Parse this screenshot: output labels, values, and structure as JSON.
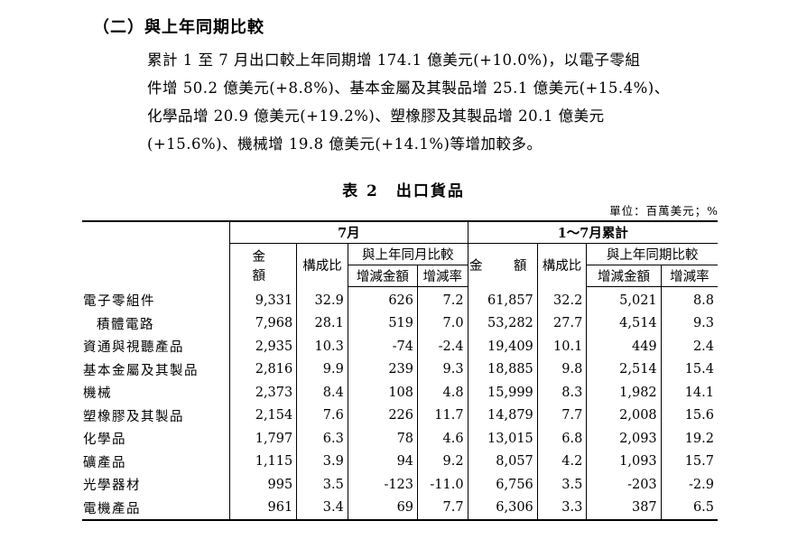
{
  "heading": "（二）與上年同期比較",
  "paragraph_lines": [
    "累計 1 至 7 月出口較上年同期增 174.1 億美元(+10.0%)，以電子零組",
    "件增 50.2 億美元(+8.8%)、基本金屬及其製品增 25.1 億美元(+15.4%)、",
    "化學品增  20.9  億美元(+19.2%)、塑橡膠及其製品增  20.1  億美元",
    "(+15.6%)、機械增 19.8 億美元(+14.1%)等增加較多。"
  ],
  "table": {
    "title": "表 2　出口貨品",
    "unit": "單位：百萬美元；%",
    "group_month": "7月",
    "group_cumulative": "1～7月累計",
    "col_amount": "金　額",
    "col_share": "構成比",
    "col_yoy_month": "與上年同月比較",
    "col_yoy_period": "與上年同期比較",
    "col_change": "增減金額",
    "col_rate": "增減率",
    "rows": [
      {
        "name": "電子零組件",
        "indent": false,
        "m_amt": "9,331",
        "m_share": "32.9",
        "m_chg": "626",
        "m_rate": "7.2",
        "c_amt": "61,857",
        "c_share": "32.2",
        "c_chg": "5,021",
        "c_rate": "8.8"
      },
      {
        "name": "積體電路",
        "indent": true,
        "m_amt": "7,968",
        "m_share": "28.1",
        "m_chg": "519",
        "m_rate": "7.0",
        "c_amt": "53,282",
        "c_share": "27.7",
        "c_chg": "4,514",
        "c_rate": "9.3"
      },
      {
        "name": "資通與視聽產品",
        "indent": false,
        "m_amt": "2,935",
        "m_share": "10.3",
        "m_chg": "-74",
        "m_rate": "-2.4",
        "c_amt": "19,409",
        "c_share": "10.1",
        "c_chg": "449",
        "c_rate": "2.4"
      },
      {
        "name": "基本金屬及其製品",
        "indent": false,
        "m_amt": "2,816",
        "m_share": "9.9",
        "m_chg": "239",
        "m_rate": "9.3",
        "c_amt": "18,885",
        "c_share": "9.8",
        "c_chg": "2,514",
        "c_rate": "15.4"
      },
      {
        "name": "機械",
        "indent": false,
        "m_amt": "2,373",
        "m_share": "8.4",
        "m_chg": "108",
        "m_rate": "4.8",
        "c_amt": "15,999",
        "c_share": "8.3",
        "c_chg": "1,982",
        "c_rate": "14.1"
      },
      {
        "name": "塑橡膠及其製品",
        "indent": false,
        "m_amt": "2,154",
        "m_share": "7.6",
        "m_chg": "226",
        "m_rate": "11.7",
        "c_amt": "14,879",
        "c_share": "7.7",
        "c_chg": "2,008",
        "c_rate": "15.6"
      },
      {
        "name": "化學品",
        "indent": false,
        "m_amt": "1,797",
        "m_share": "6.3",
        "m_chg": "78",
        "m_rate": "4.6",
        "c_amt": "13,015",
        "c_share": "6.8",
        "c_chg": "2,093",
        "c_rate": "19.2"
      },
      {
        "name": "礦產品",
        "indent": false,
        "m_amt": "1,115",
        "m_share": "3.9",
        "m_chg": "94",
        "m_rate": "9.2",
        "c_amt": "8,057",
        "c_share": "4.2",
        "c_chg": "1,093",
        "c_rate": "15.7"
      },
      {
        "name": "光學器材",
        "indent": false,
        "m_amt": "995",
        "m_share": "3.5",
        "m_chg": "-123",
        "m_rate": "-11.0",
        "c_amt": "6,756",
        "c_share": "3.5",
        "c_chg": "-203",
        "c_rate": "-2.9"
      },
      {
        "name": "電機產品",
        "indent": false,
        "m_amt": "961",
        "m_share": "3.4",
        "m_chg": "69",
        "m_rate": "7.7",
        "c_amt": "6,306",
        "c_share": "3.3",
        "c_chg": "387",
        "c_rate": "6.5"
      }
    ]
  }
}
